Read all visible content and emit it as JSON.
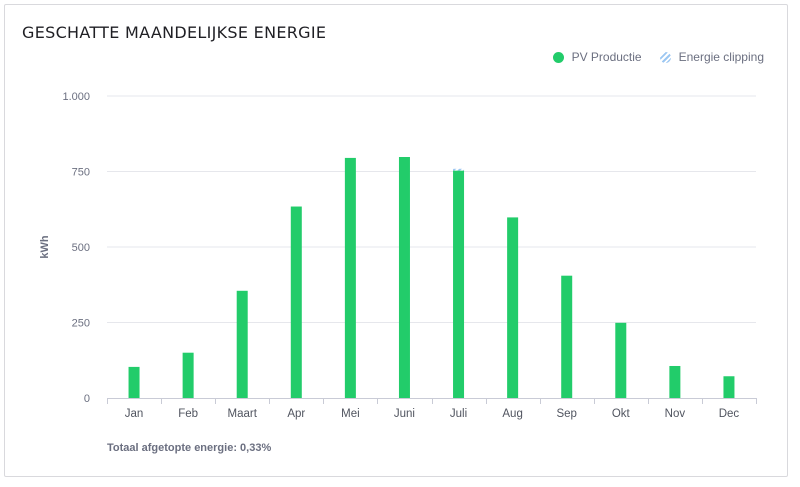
{
  "title": "GESCHATTE MAANDELIJKSE ENERGIE",
  "legend": {
    "pv": {
      "label": "PV Productie",
      "color": "#22cc6a"
    },
    "clipping": {
      "label": "Energie clipping",
      "color": "#9cc7f2"
    }
  },
  "footer": "Totaal afgetopte energie: 0,33%",
  "chart_data": {
    "type": "bar",
    "title": "GESCHATTE MAANDELIJKSE ENERGIE",
    "xlabel": "",
    "ylabel": "kWh",
    "ylim": [
      0,
      1000
    ],
    "yticks": [
      0,
      250,
      500,
      750,
      1000
    ],
    "ytick_labels": [
      "0",
      "250",
      "500",
      "750",
      "1.000"
    ],
    "categories": [
      "Jan",
      "Feb",
      "Maart",
      "Apr",
      "Mei",
      "Juni",
      "Juli",
      "Aug",
      "Sep",
      "Okt",
      "Nov",
      "Dec"
    ],
    "series": [
      {
        "name": "PV Productie",
        "color": "#22cc6a",
        "values": [
          103,
          150,
          355,
          634,
          795,
          798,
          753,
          598,
          405,
          249,
          106,
          72
        ]
      },
      {
        "name": "Energie clipping",
        "color": "#9cc7f2",
        "values": [
          0,
          0,
          0,
          0,
          0,
          0,
          6,
          0,
          0,
          0,
          0,
          0
        ]
      }
    ],
    "grid": true,
    "legend_position": "top-right"
  }
}
